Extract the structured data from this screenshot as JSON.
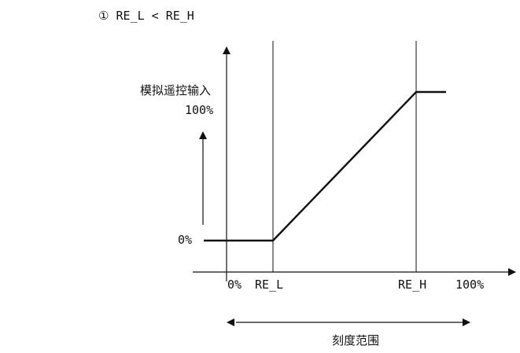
{
  "caption": "① RE_L < RE_H",
  "y_axis": {
    "title": "模拟遥控输入",
    "top_value": "100%",
    "bottom_value": "0%"
  },
  "x_axis": {
    "labels": [
      "0%",
      "RE_L",
      "RE_H",
      "100%"
    ]
  },
  "range_label": "刻度范围",
  "colors": {
    "line": "#111111",
    "background": "#ffffff"
  }
}
